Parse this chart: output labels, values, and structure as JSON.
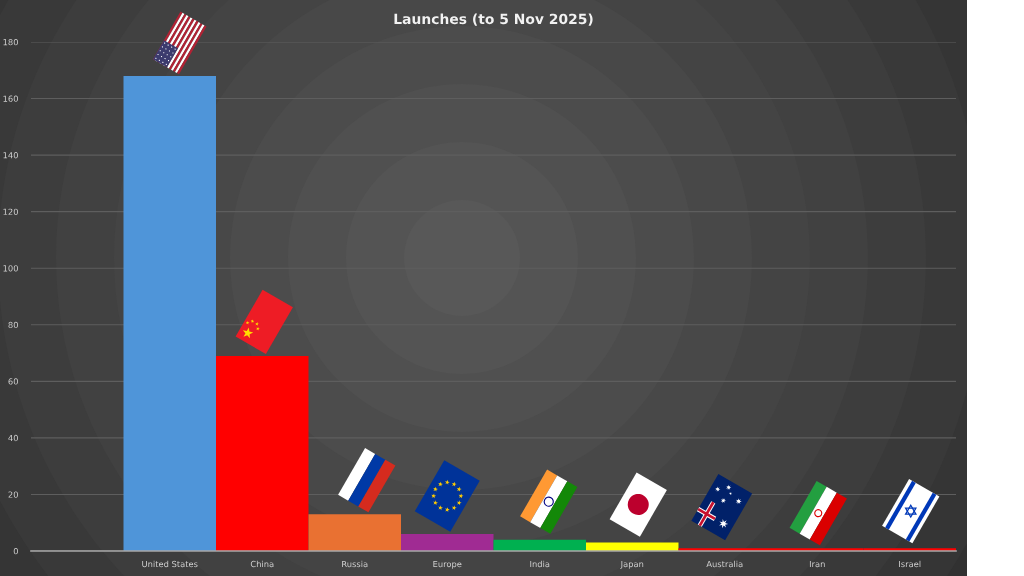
{
  "chart_data": {
    "type": "bar",
    "title": "Launches (to 5 Nov 2025)",
    "categories": [
      null,
      "United States",
      "China",
      "Russia",
      "Europe",
      "India",
      "Japan",
      "Australia",
      "Iran",
      "Israel"
    ],
    "values": [
      null,
      168,
      69,
      13,
      6,
      4,
      3,
      1,
      1,
      1
    ],
    "colors": [
      null,
      "#4f95d9",
      "#ff0000",
      "#e97132",
      "#a02b93",
      "#00b050",
      "#ffff00",
      "#ff0000",
      "#ff0000",
      "#ff0000"
    ],
    "ylim": [
      0,
      180
    ],
    "yticks": [
      0,
      20,
      40,
      60,
      80,
      100,
      120,
      140,
      160,
      180
    ],
    "grid": "y"
  }
}
